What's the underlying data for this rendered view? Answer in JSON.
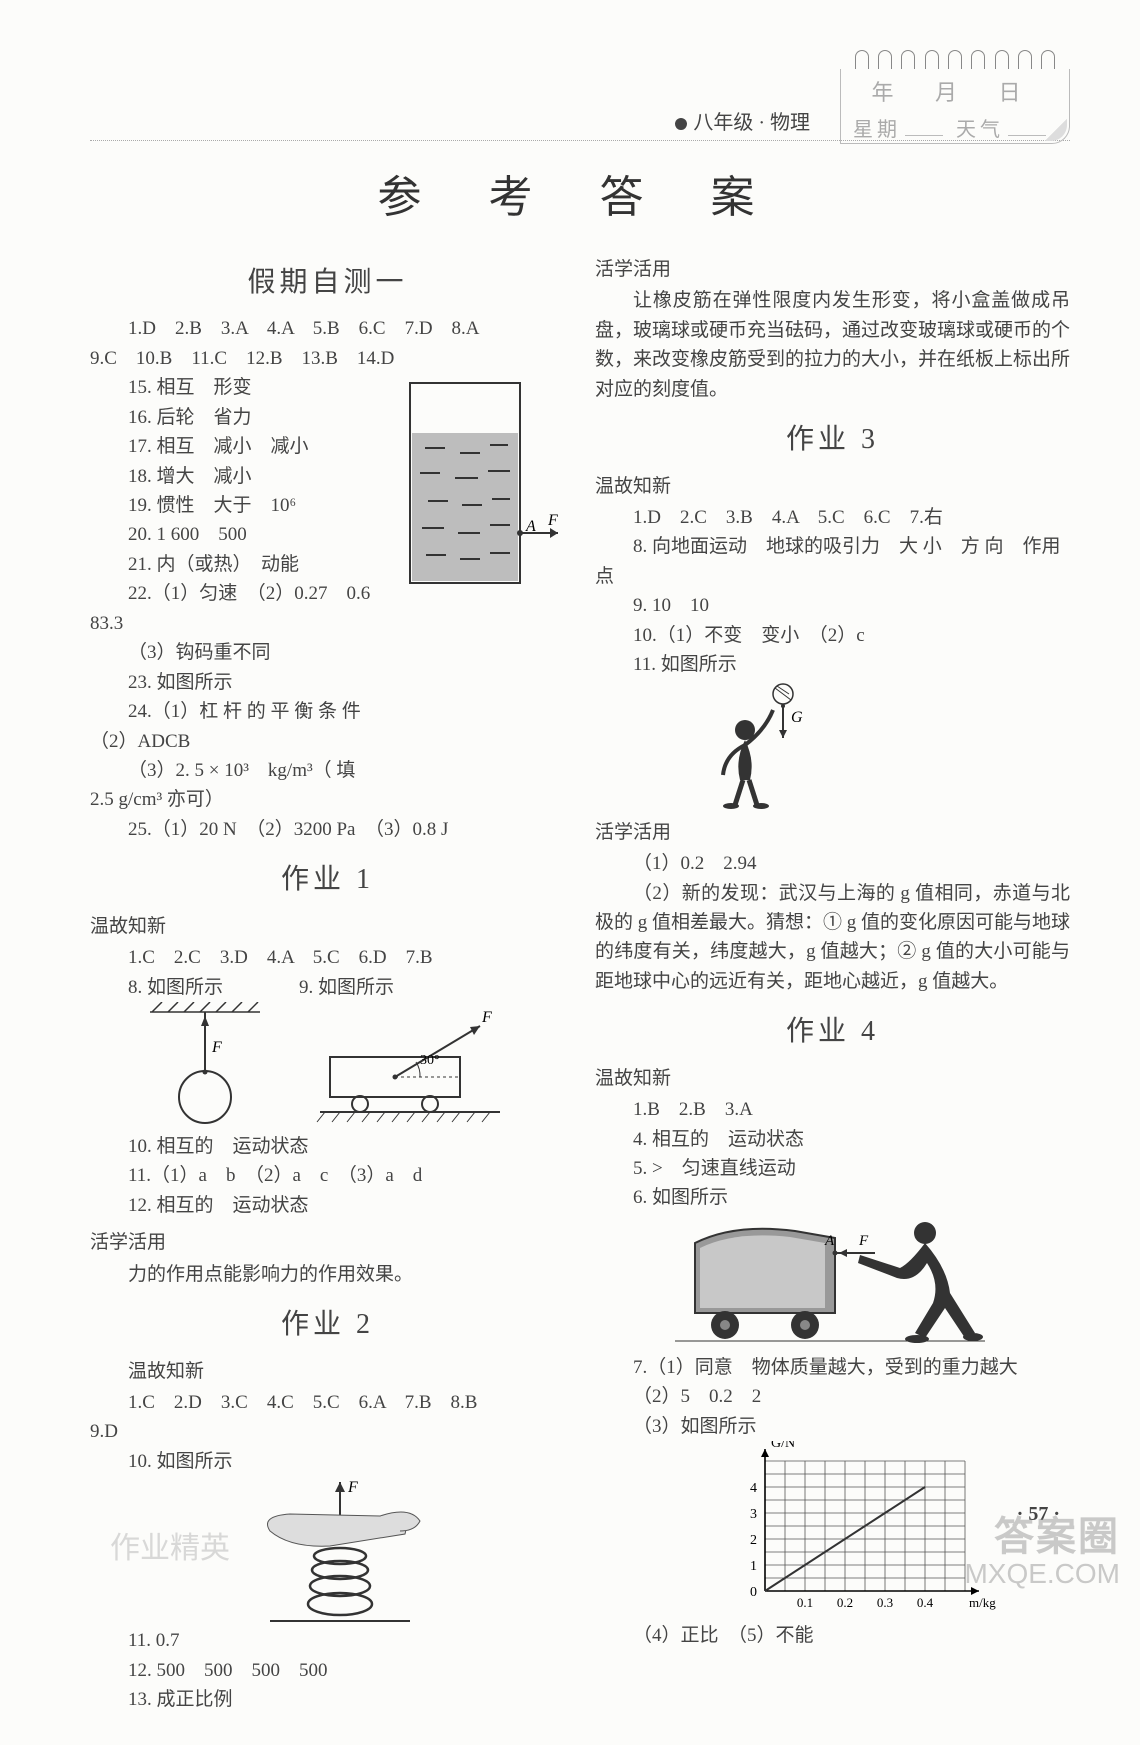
{
  "header": {
    "subject": "八年级 · 物理",
    "notepad": {
      "line1": "年 月 日",
      "week": "星期",
      "weather": "天气"
    }
  },
  "title": "参 考 答 案",
  "page_number": "· 57 ·",
  "watermark": {
    "main": "答案圈",
    "sub": "MXQE.COM"
  },
  "left": {
    "sec0": {
      "title": "假期自测一",
      "row1": "1.D　2.B　3.A　4.A　5.B　6.C　7.D　8.A",
      "row2": "9.C　10.B　11.C　12.B　13.B　14.D",
      "a15": "15. 相互　形变",
      "a16": "16. 后轮　省力",
      "a17": "17. 相互　减小　减小",
      "a18": "18. 增大　减小",
      "a19": "19. 惯性　大于　10⁶",
      "a20": "20. 1 600　500",
      "a21": "21. 内（或热）　动能",
      "a22a": "22.（1）匀速　（2）0.27　0.6",
      "a22b": "83.3",
      "a22c": "（3）钩码重不同",
      "a23": "23. 如图所示",
      "a24a": "24.（1）杠 杆 的 平 衡 条 件",
      "a24b": "（2）ADCB",
      "a24c": "（3）2. 5 × 10³　kg/m³（ 填",
      "a24d": "2.5 g/cm³ 亦可）",
      "a25": "25.（1）20 N　（2）3200 Pa　（3）0.8 J",
      "fig_labels": {
        "A": "A",
        "F": "F"
      }
    },
    "sec1": {
      "title": "作业 1",
      "sub": "温故知新",
      "row1": "1.C　2.C　3.D　4.A　5.C　6.D　7.B",
      "a8": "8. 如图所示",
      "a9": "9. 如图所示",
      "a10": "10. 相互的　运动状态",
      "a11": "11.（1）a　b　（2）a　c　（3）a　d",
      "a12": "12. 相互的　运动状态",
      "sub2": "活学活用",
      "t2": "力的作用点能影响力的作用效果。",
      "fig": {
        "F1": "F",
        "F2": "F",
        "angle": "30°"
      }
    },
    "sec2": {
      "title": "作业 2",
      "sub": "温故知新",
      "row1": "1.C　2.D　3.C　4.C　5.C　6.A　7.B　8.B",
      "row2": "9.D",
      "a10": "10. 如图所示",
      "a11": "11. 0.7",
      "a12": "12. 500　500　500　500",
      "a13": "13. 成正比例",
      "fig": {
        "F": "F"
      },
      "ghost": "作业精英"
    }
  },
  "right": {
    "sec2b": {
      "sub": "活学活用",
      "text": "让橡皮筋在弹性限度内发生形变，将小盒盖做成吊盘，玻璃球或硬币充当砝码，通过改变玻璃球或硬币的个数，来改变橡皮筋受到的拉力的大小，并在纸板上标出所对应的刻度值。"
    },
    "sec3": {
      "title": "作业 3",
      "sub": "温故知新",
      "row1": "1.D　2.C　3.B　4.A　5.C　6.C　7.右",
      "a8": "8. 向地面运动　地球的吸引力　大 小　方 向　作用点",
      "a9": "9. 10　10",
      "a10": "10.（1）不变　变小　（2）c",
      "a11": "11. 如图所示",
      "fig": {
        "G": "G"
      },
      "sub2": "活学活用",
      "t1": "（1）0.2　2.94",
      "t2": "（2）新的发现：武汉与上海的 g 值相同，赤道与北极的 g 值相差最大。猜想：① g 值的变化原因可能与地球的纬度有关，纬度越大，g 值越大；② g 值的大小可能与距地球中心的远近有关，距地心越近，g 值越大。"
    },
    "sec4": {
      "title": "作业 4",
      "sub": "温故知新",
      "row1": "1.B　2.B　3.A",
      "a4": "4. 相互的　运动状态",
      "a5": "5. >　匀速直线运动",
      "a6": "6. 如图所示",
      "fig6": {
        "A": "A",
        "F": "F"
      },
      "a7a": "7.（1）同意　物体质量越大，受到的重力越大",
      "a7b": "（2）5　0.2　2",
      "a7c": "（3）如图所示",
      "a7d": "（4）正比　（5）不能",
      "chart": {
        "ylabel": "G/N",
        "xlabel": "m/kg",
        "yticks": [
          "0",
          "1",
          "2",
          "3",
          "4"
        ],
        "xticks": [
          "0.1",
          "0.2",
          "0.3",
          "0.4"
        ],
        "grid_color": "#555",
        "line_color": "#333",
        "xmax": 0.5,
        "ymax": 5,
        "points": [
          [
            0,
            0
          ],
          [
            0.4,
            4
          ]
        ]
      }
    }
  }
}
